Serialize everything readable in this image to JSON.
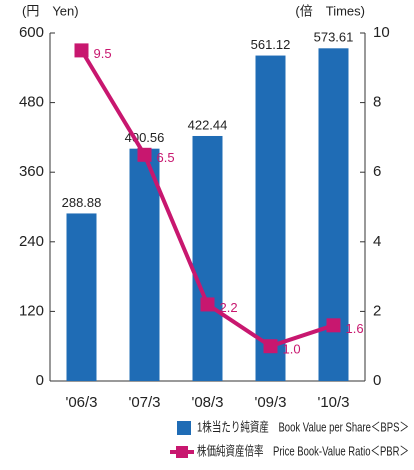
{
  "chart_data": {
    "type": "bar_line",
    "y_label": "(円　Yen)",
    "y2_label": "(倍　Times)",
    "categories": [
      "'06/3",
      "'07/3",
      "'08/3",
      "'09/3",
      "'10/3"
    ],
    "series": [
      {
        "name": "1株当たり純資産　Book Value per Share＜BPS＞",
        "color": "#1f6cb5",
        "values": [
          288.88,
          400.56,
          422.44,
          561.12,
          573.61
        ]
      },
      {
        "name": "株価純資産倍率　Price Book-Value Ratio＜PBR＞",
        "color": "#c8176f",
        "axis": "y2",
        "values": [
          9.5,
          6.5,
          2.2,
          1.0,
          1.6
        ],
        "value_labels": [
          "9.5",
          "6.5",
          "2.2",
          "1.0",
          "1.6"
        ]
      }
    ],
    "ylim": [
      0,
      600
    ],
    "yticks": [
      0,
      120,
      240,
      360,
      480,
      600
    ],
    "y2lim": [
      0,
      10
    ],
    "y2ticks": [
      0,
      2,
      4,
      6,
      8,
      10
    ]
  }
}
